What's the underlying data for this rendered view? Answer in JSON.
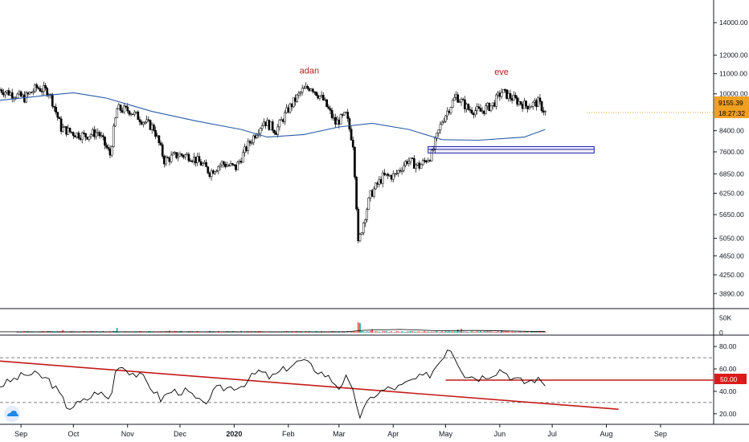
{
  "colors": {
    "up_candle": "#ffffff",
    "down_candle": "#000000",
    "candle_outline": "#000000",
    "moving_average": "#2a5ba8",
    "annotation_text": "#b71c1c",
    "rectangle": "#1a1aa6",
    "trendline": "#c41a1a",
    "price_badge": "#f0a020",
    "rsi_line": "#000000",
    "volume_up": "#26a69a",
    "volume_down": "#ef5350",
    "volume_ma": "#000000"
  },
  "logo": {
    "icon": "tradingview-cloud-icon"
  },
  "chart_data": [
    {
      "type": "candlestick",
      "panel": "price",
      "y_ticks": [
        "14000.00",
        "12000.00",
        "11000.00",
        "10000.00",
        "8400.00",
        "7600.00",
        "6850.00",
        "6250.00",
        "5650.00",
        "5050.00",
        "4650.00",
        "4250.00",
        "3890.00"
      ],
      "y_scale": "log",
      "ylim": [
        3850,
        15000
      ],
      "x_ticks": [
        "Sep",
        "Oct",
        "Nov",
        "Dec",
        "2020",
        "Feb",
        "Mar",
        "Apr",
        "May",
        "Jun",
        "Jul",
        "Aug",
        "Sep"
      ],
      "current_price": "9155.39",
      "countdown": "18:27:32",
      "annotations": [
        {
          "text": "adan",
          "x": "2020-02-13",
          "y": 11000
        },
        {
          "text": "eve",
          "x": "2020-06-02",
          "y": 10950
        }
      ],
      "zone": {
        "x_start": "2020-04-21",
        "x_end": "2020-07-25",
        "y_top": 7790,
        "y_mid": 7690,
        "y_bottom": 7560
      },
      "series": [
        {
          "name": "price",
          "points": [
            [
              "2019-08-20",
              10200
            ],
            [
              "2019-08-27",
              10000
            ],
            [
              "2019-09-03",
              9800
            ],
            [
              "2019-09-10",
              10300
            ],
            [
              "2019-09-17",
              10100
            ],
            [
              "2019-09-24",
              8500
            ],
            [
              "2019-10-01",
              8300
            ],
            [
              "2019-10-08",
              8200
            ],
            [
              "2019-10-15",
              8350
            ],
            [
              "2019-10-22",
              7500
            ],
            [
              "2019-10-26",
              9300
            ],
            [
              "2019-11-02",
              9250
            ],
            [
              "2019-11-09",
              8850
            ],
            [
              "2019-11-16",
              8500
            ],
            [
              "2019-11-22",
              7300
            ],
            [
              "2019-11-30",
              7500
            ],
            [
              "2019-12-07",
              7450
            ],
            [
              "2019-12-14",
              7150
            ],
            [
              "2019-12-18",
              6900
            ],
            [
              "2019-12-25",
              7200
            ],
            [
              "2020-01-02",
              7050
            ],
            [
              "2020-01-09",
              7850
            ],
            [
              "2020-01-18",
              8800
            ],
            [
              "2020-01-25",
              8400
            ],
            [
              "2020-02-01",
              9300
            ],
            [
              "2020-02-09",
              10150
            ],
            [
              "2020-02-14",
              10350
            ],
            [
              "2020-02-21",
              9700
            ],
            [
              "2020-02-28",
              8700
            ],
            [
              "2020-03-05",
              9050
            ],
            [
              "2020-03-09",
              7900
            ],
            [
              "2020-03-12",
              4900
            ],
            [
              "2020-03-19",
              6200
            ],
            [
              "2020-03-26",
              6750
            ],
            [
              "2020-04-02",
              6800
            ],
            [
              "2020-04-09",
              7300
            ],
            [
              "2020-04-16",
              7100
            ],
            [
              "2020-04-23",
              7500
            ],
            [
              "2020-04-29",
              8800
            ],
            [
              "2020-05-07",
              9900
            ],
            [
              "2020-05-14",
              9300
            ],
            [
              "2020-05-21",
              9200
            ],
            [
              "2020-05-28",
              9500
            ],
            [
              "2020-06-02",
              10100
            ],
            [
              "2020-06-09",
              9750
            ],
            [
              "2020-06-16",
              9450
            ],
            [
              "2020-06-23",
              9600
            ],
            [
              "2020-06-27",
              9155
            ]
          ]
        },
        {
          "name": "moving average",
          "points": [
            [
              "2019-08-20",
              9700
            ],
            [
              "2019-09-15",
              9920
            ],
            [
              "2019-10-01",
              10050
            ],
            [
              "2019-10-20",
              9800
            ],
            [
              "2019-11-15",
              9200
            ],
            [
              "2019-12-10",
              8800
            ],
            [
              "2020-01-05",
              8450
            ],
            [
              "2020-01-20",
              8150
            ],
            [
              "2020-02-10",
              8250
            ],
            [
              "2020-03-01",
              8550
            ],
            [
              "2020-03-20",
              8700
            ],
            [
              "2020-04-10",
              8450
            ],
            [
              "2020-04-29",
              8050
            ],
            [
              "2020-05-20",
              8030
            ],
            [
              "2020-06-15",
              8150
            ],
            [
              "2020-06-27",
              8450
            ]
          ]
        }
      ]
    },
    {
      "type": "bar",
      "panel": "volume",
      "y_ticks": [
        "50K",
        "0"
      ],
      "ylim": [
        0,
        75000
      ],
      "series": [
        {
          "name": "volume",
          "points": [
            [
              "2019-09-25",
              9000
            ],
            [
              "2019-10-26",
              16000
            ],
            [
              "2019-11-25",
              7000
            ],
            [
              "2019-12-18",
              6000
            ],
            [
              "2020-01-15",
              5000
            ],
            [
              "2020-02-20",
              5000
            ],
            [
              "2020-03-12",
              35000
            ],
            [
              "2020-03-13",
              32000
            ],
            [
              "2020-03-20",
              12000
            ],
            [
              "2020-05-08",
              11000
            ],
            [
              "2020-05-10",
              13000
            ],
            [
              "2020-06-02",
              9000
            ]
          ]
        }
      ]
    },
    {
      "type": "line",
      "panel": "oscillator",
      "y_ticks": [
        "80.00",
        "60.00",
        "40.00",
        "20.00"
      ],
      "ylim": [
        12,
        88
      ],
      "dashed_levels": [
        70,
        30
      ],
      "current_value": "50.00",
      "horizontal_line": {
        "y": 50,
        "x_start": "2020-05-01",
        "x_end": "2020-07-25"
      },
      "trendline": {
        "x_start": "2019-08-20",
        "y_start": 67,
        "x_end": "2020-08-08",
        "y_end": 24
      },
      "series": [
        {
          "name": "oscillator",
          "points": [
            [
              "2019-08-20",
              45
            ],
            [
              "2019-09-03",
              55
            ],
            [
              "2019-09-10",
              55
            ],
            [
              "2019-09-17",
              50
            ],
            [
              "2019-09-22",
              40
            ],
            [
              "2019-09-28",
              25
            ],
            [
              "2019-10-08",
              32
            ],
            [
              "2019-10-15",
              40
            ],
            [
              "2019-10-22",
              32
            ],
            [
              "2019-10-26",
              65
            ],
            [
              "2019-11-02",
              58
            ],
            [
              "2019-11-10",
              52
            ],
            [
              "2019-11-20",
              33
            ],
            [
              "2019-11-26",
              40
            ],
            [
              "2019-12-05",
              40
            ],
            [
              "2019-12-14",
              28
            ],
            [
              "2019-12-22",
              42
            ],
            [
              "2020-01-05",
              45
            ],
            [
              "2020-01-15",
              58
            ],
            [
              "2020-01-22",
              52
            ],
            [
              "2020-02-01",
              62
            ],
            [
              "2020-02-09",
              68
            ],
            [
              "2020-02-16",
              60
            ],
            [
              "2020-02-23",
              54
            ],
            [
              "2020-03-01",
              44
            ],
            [
              "2020-03-05",
              52
            ],
            [
              "2020-03-10",
              35
            ],
            [
              "2020-03-13",
              18
            ],
            [
              "2020-03-20",
              36
            ],
            [
              "2020-03-28",
              42
            ],
            [
              "2020-04-05",
              44
            ],
            [
              "2020-04-12",
              50
            ],
            [
              "2020-04-22",
              55
            ],
            [
              "2020-04-29",
              70
            ],
            [
              "2020-05-03",
              81
            ],
            [
              "2020-05-08",
              66
            ],
            [
              "2020-05-12",
              55
            ],
            [
              "2020-05-20",
              52
            ],
            [
              "2020-05-28",
              56
            ],
            [
              "2020-06-02",
              60
            ],
            [
              "2020-06-08",
              52
            ],
            [
              "2020-06-15",
              48
            ],
            [
              "2020-06-22",
              51
            ],
            [
              "2020-06-27",
              47
            ]
          ]
        }
      ]
    }
  ]
}
